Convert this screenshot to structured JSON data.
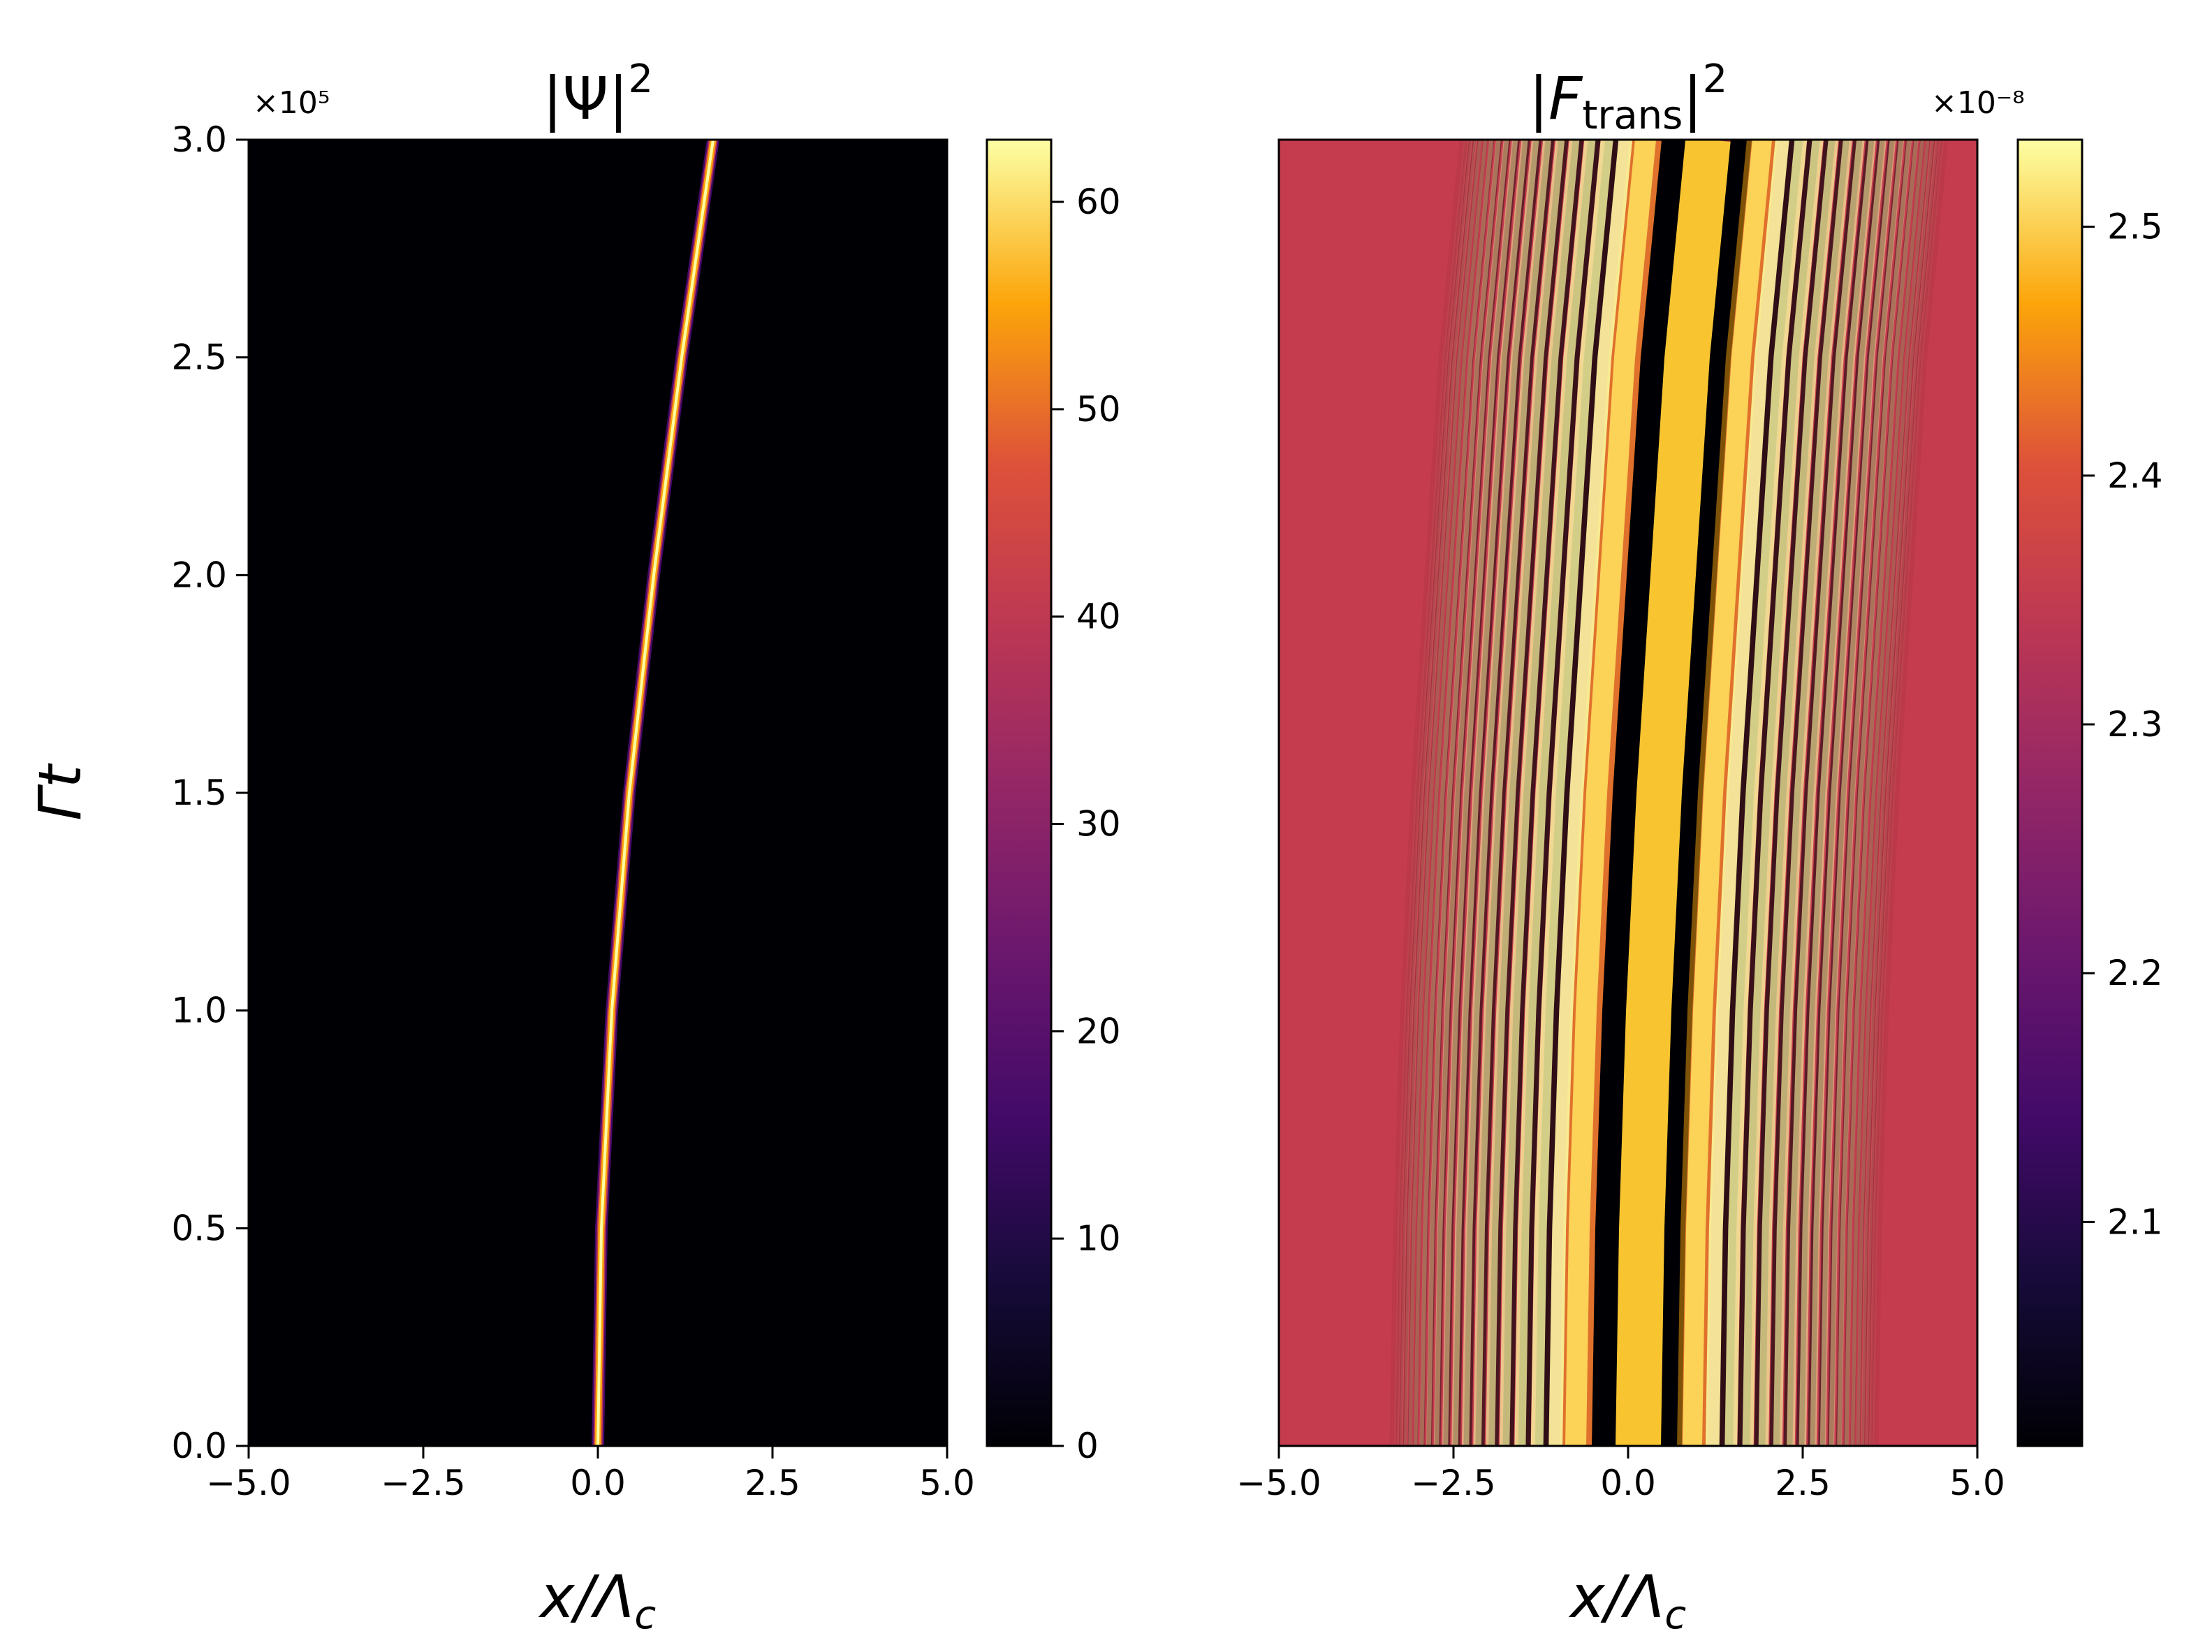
{
  "chart_data": [
    {
      "type": "heatmap",
      "title": "|Ψ|²",
      "xlabel": "x/Λc",
      "ylabel": "Γt",
      "xlim": [
        -5.0,
        5.0
      ],
      "ylim": [
        0.0,
        3.0
      ],
      "x_ticks": [
        "−5.0",
        "−2.5",
        "0.0",
        "2.5",
        "5.0"
      ],
      "y_ticks": [
        "0.0",
        "0.5",
        "1.0",
        "1.5",
        "2.0",
        "2.5",
        "3.0"
      ],
      "y_multiplier": "×10⁵",
      "colormap": "inferno",
      "colorbar": {
        "range": [
          0,
          63
        ],
        "ticks": [
          "0",
          "10",
          "20",
          "30",
          "40",
          "50",
          "60"
        ],
        "tick_values": [
          0,
          10,
          20,
          30,
          40,
          50,
          60
        ]
      },
      "trajectory": {
        "y": [
          0.0,
          0.5,
          1.0,
          1.5,
          2.0,
          2.5,
          3.0
        ],
        "x": [
          0.0,
          0.05,
          0.2,
          0.45,
          0.8,
          1.2,
          1.65
        ]
      }
    },
    {
      "type": "heatmap",
      "title": "|F_trans|²",
      "xlabel": "x/Λc",
      "xlim": [
        -5.0,
        5.0
      ],
      "ylim": [
        0.0,
        3.0
      ],
      "x_ticks": [
        "−5.0",
        "−2.5",
        "0.0",
        "2.5",
        "5.0"
      ],
      "colormap": "inferno",
      "colorbar": {
        "range": [
          2.01,
          2.535
        ],
        "ticks": [
          "2.1",
          "2.2",
          "2.3",
          "2.4",
          "2.5"
        ],
        "tick_values": [
          2.1,
          2.2,
          2.3,
          2.4,
          2.5
        ],
        "multiplier": "×10⁻⁸"
      },
      "background_value": 2.3,
      "center_shift": {
        "y": [
          0.0,
          0.5,
          1.0,
          1.5,
          2.0,
          2.5,
          3.0
        ],
        "x": [
          0.0,
          0.05,
          0.15,
          0.3,
          0.5,
          0.7,
          1.0
        ]
      }
    }
  ]
}
